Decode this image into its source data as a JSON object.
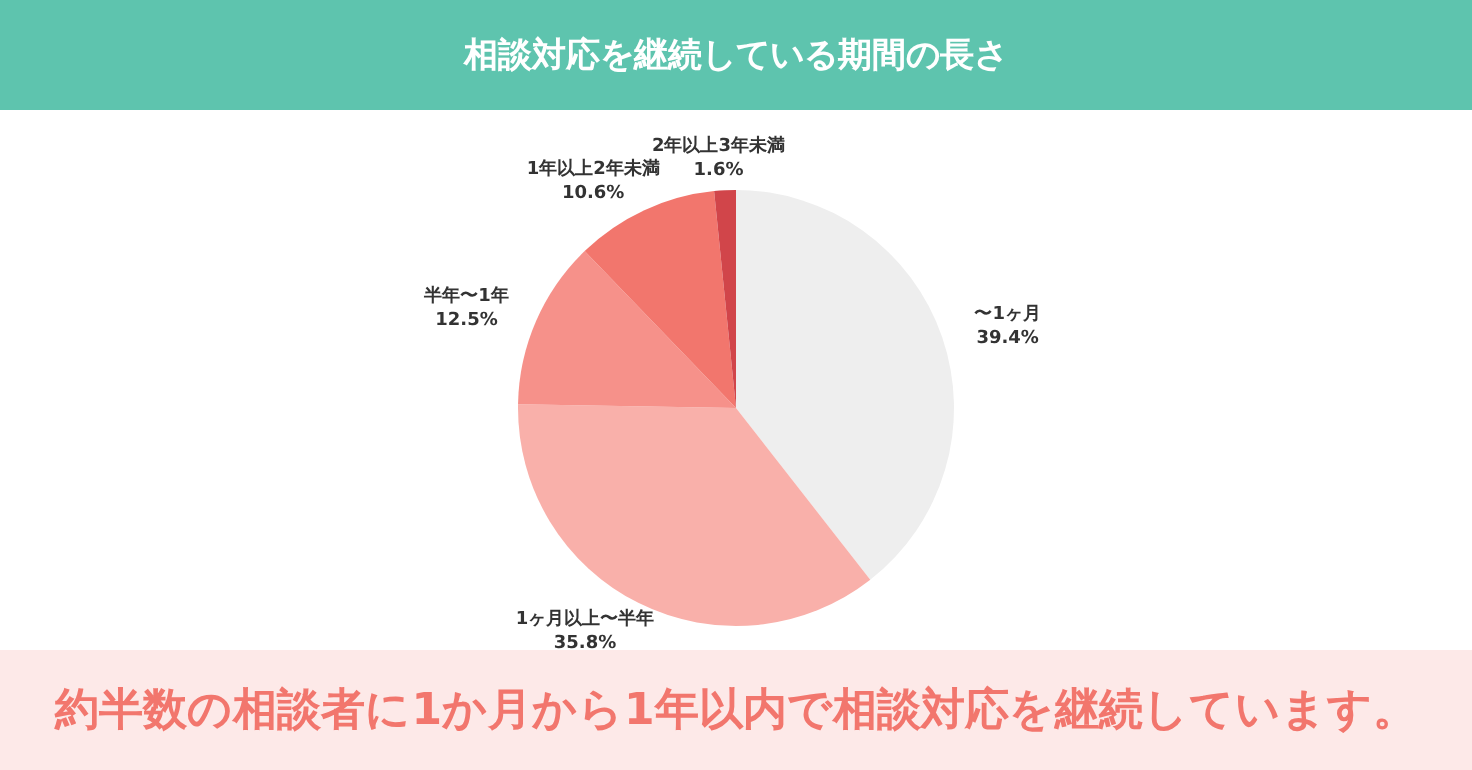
{
  "chart_data": {
    "type": "pie",
    "title": "相談対応を継続している期間の長さ",
    "categories": [
      "〜1ヶ月",
      "1ヶ月以上〜半年",
      "半年〜1年",
      "1年以上2年未満",
      "2年以上3年未満"
    ],
    "values": [
      39.4,
      35.8,
      12.5,
      10.6,
      1.6
    ],
    "colors": [
      "#eeeeee",
      "#f9b0aa",
      "#f6918a",
      "#f2766d",
      "#d1454a"
    ],
    "value_labels": [
      "39.4%",
      "35.8%",
      "12.5%",
      "10.6%",
      "1.6%"
    ],
    "legend": false,
    "annotations": [
      "約半数の相談者に1か月から1年以内で相談対応を継続しています。"
    ]
  }
}
